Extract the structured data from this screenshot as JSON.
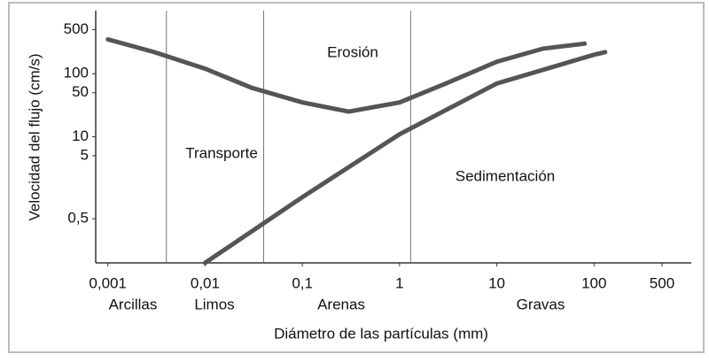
{
  "chart_data": {
    "type": "line",
    "x_label": "Diámetro de las partículas (mm)",
    "y_label": "Velocidad del flujo (cm/s)",
    "x_log": true,
    "y_log": true,
    "xlim": [
      0.00075,
      1000
    ],
    "ylim": [
      0.1,
      1000
    ],
    "xticks": [
      {
        "value": 0.001,
        "label": "0,001"
      },
      {
        "value": 0.01,
        "label": "0,01"
      },
      {
        "value": 0.1,
        "label": "0,1"
      },
      1,
      10,
      100,
      500
    ],
    "yticks": [
      500,
      100,
      50,
      10,
      5,
      {
        "value": 0.5,
        "label": "0,5"
      }
    ],
    "boundaries": [
      0.004,
      0.04,
      1.3
    ],
    "size_classes": [
      "Arcillas",
      "Limos",
      "Arenas",
      "Gravas"
    ],
    "regions": [
      "Erosión",
      "Transporte",
      "Sedimentación"
    ],
    "series": [
      {
        "color": "#555555",
        "x": [
          0.001,
          0.003,
          0.01,
          0.03,
          0.1,
          0.3,
          1,
          3,
          10,
          30,
          80
        ],
        "values": [
          350,
          220,
          120,
          60,
          35,
          25,
          35,
          70,
          155,
          250,
          300
        ]
      },
      {
        "color": "#555555",
        "x": [
          0.01,
          0.1,
          1,
          10,
          100,
          130
        ],
        "values": [
          0.1,
          1.1,
          11,
          70,
          200,
          220
        ]
      }
    ]
  }
}
